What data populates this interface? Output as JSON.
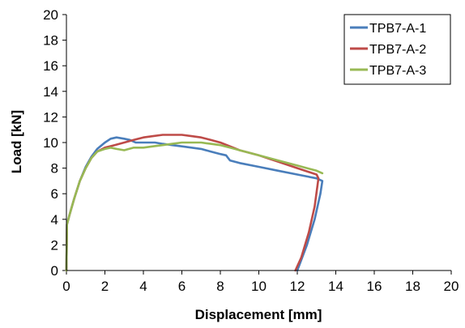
{
  "chart_data": {
    "type": "line",
    "xlabel": "Displacement [mm]",
    "ylabel": "Load [kN]",
    "xlim": [
      0,
      20
    ],
    "ylim": [
      0,
      20
    ],
    "xticks": [
      0,
      2,
      4,
      6,
      8,
      10,
      12,
      14,
      16,
      18,
      20
    ],
    "yticks": [
      0,
      2,
      4,
      6,
      8,
      10,
      12,
      14,
      16,
      18,
      20
    ],
    "grid": false,
    "legend_position": "top-right",
    "series": [
      {
        "name": "TPB7-A-1",
        "color": "#4a7ebb",
        "points": [
          [
            0,
            0
          ],
          [
            0.03,
            3.6
          ],
          [
            0.15,
            4.3
          ],
          [
            0.4,
            5.6
          ],
          [
            0.7,
            7.0
          ],
          [
            1.0,
            8.1
          ],
          [
            1.3,
            8.9
          ],
          [
            1.6,
            9.5
          ],
          [
            2.0,
            10.0
          ],
          [
            2.3,
            10.3
          ],
          [
            2.6,
            10.4
          ],
          [
            3.0,
            10.3
          ],
          [
            3.3,
            10.2
          ],
          [
            3.6,
            10.0
          ],
          [
            4.0,
            10.0
          ],
          [
            4.6,
            10.0
          ],
          [
            5.0,
            9.9
          ],
          [
            5.5,
            9.8
          ],
          [
            6.0,
            9.7
          ],
          [
            6.5,
            9.6
          ],
          [
            7.0,
            9.5
          ],
          [
            7.5,
            9.3
          ],
          [
            8.0,
            9.1
          ],
          [
            8.3,
            9.0
          ],
          [
            8.4,
            8.8
          ],
          [
            8.5,
            8.6
          ],
          [
            9.0,
            8.4
          ],
          [
            10.0,
            8.1
          ],
          [
            11.0,
            7.8
          ],
          [
            12.0,
            7.5
          ],
          [
            13.0,
            7.2
          ],
          [
            13.3,
            7.0
          ],
          [
            13.2,
            6.0
          ],
          [
            12.9,
            4.0
          ],
          [
            12.5,
            2.0
          ],
          [
            12.0,
            0.0
          ]
        ]
      },
      {
        "name": "TPB7-A-2",
        "color": "#be4b48",
        "points": [
          [
            0,
            0
          ],
          [
            0.03,
            3.6
          ],
          [
            0.15,
            4.3
          ],
          [
            0.4,
            5.6
          ],
          [
            0.7,
            7.0
          ],
          [
            1.0,
            8.0
          ],
          [
            1.3,
            8.8
          ],
          [
            1.6,
            9.3
          ],
          [
            2.0,
            9.6
          ],
          [
            2.5,
            9.8
          ],
          [
            3.0,
            10.0
          ],
          [
            3.5,
            10.2
          ],
          [
            4.0,
            10.4
          ],
          [
            4.5,
            10.5
          ],
          [
            5.0,
            10.6
          ],
          [
            5.5,
            10.6
          ],
          [
            6.0,
            10.6
          ],
          [
            6.5,
            10.5
          ],
          [
            7.0,
            10.4
          ],
          [
            7.5,
            10.2
          ],
          [
            8.0,
            10.0
          ],
          [
            8.5,
            9.7
          ],
          [
            9.0,
            9.4
          ],
          [
            10.0,
            9.0
          ],
          [
            11.0,
            8.5
          ],
          [
            12.0,
            8.0
          ],
          [
            13.0,
            7.5
          ],
          [
            13.1,
            7.2
          ],
          [
            12.9,
            5.0
          ],
          [
            12.6,
            3.0
          ],
          [
            12.2,
            1.0
          ],
          [
            11.9,
            0.0
          ]
        ]
      },
      {
        "name": "TPB7-A-3",
        "color": "#98b954",
        "points": [
          [
            0,
            0
          ],
          [
            0.03,
            3.6
          ],
          [
            0.15,
            4.3
          ],
          [
            0.4,
            5.6
          ],
          [
            0.7,
            7.0
          ],
          [
            1.0,
            8.0
          ],
          [
            1.3,
            8.8
          ],
          [
            1.6,
            9.3
          ],
          [
            2.0,
            9.5
          ],
          [
            2.3,
            9.6
          ],
          [
            2.6,
            9.5
          ],
          [
            3.0,
            9.4
          ],
          [
            3.5,
            9.6
          ],
          [
            4.0,
            9.6
          ],
          [
            4.5,
            9.7
          ],
          [
            5.0,
            9.8
          ],
          [
            5.5,
            9.9
          ],
          [
            6.0,
            10.0
          ],
          [
            6.5,
            10.0
          ],
          [
            7.0,
            10.0
          ],
          [
            7.5,
            9.9
          ],
          [
            8.0,
            9.8
          ],
          [
            8.5,
            9.6
          ],
          [
            9.0,
            9.4
          ],
          [
            10.0,
            9.0
          ],
          [
            11.0,
            8.6
          ],
          [
            12.0,
            8.2
          ],
          [
            13.0,
            7.8
          ],
          [
            13.3,
            7.6
          ]
        ]
      }
    ]
  }
}
